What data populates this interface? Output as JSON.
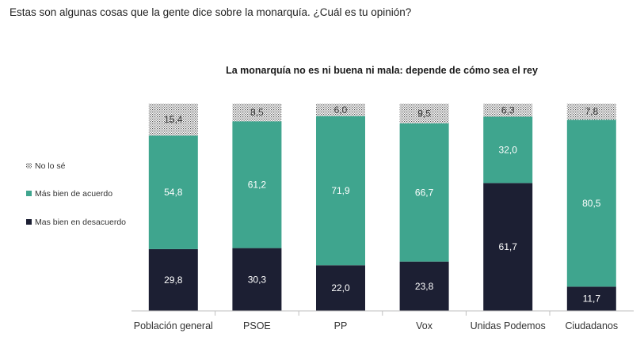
{
  "question": "Estas son algunas cosas que la gente dice sobre la monarquía. ¿Cuál es tu opinión?",
  "chart_data": {
    "type": "bar",
    "stacked": true,
    "title": "La monarquía no es ni buena ni mala: depende de cómo sea el rey",
    "categories": [
      "Población general",
      "PSOE",
      "PP",
      "Vox",
      "Unidas Podemos",
      "Ciudadanos"
    ],
    "series": [
      {
        "name": "Mas bien en desacuerdo",
        "color": "#1c1f33",
        "values": [
          29.8,
          30.3,
          22.0,
          23.8,
          61.7,
          11.7
        ],
        "labels": [
          "29,8",
          "30,3",
          "22,0",
          "23,8",
          "61,7",
          "11,7"
        ]
      },
      {
        "name": "Más bien de acuerdo",
        "color": "#3fa58e",
        "values": [
          54.8,
          61.2,
          71.9,
          66.7,
          32.0,
          80.5
        ],
        "labels": [
          "54,8",
          "61,2",
          "71,9",
          "66,7",
          "32,0",
          "80,5"
        ]
      },
      {
        "name": "No lo sé",
        "color": "#d9d9d9",
        "pattern": "dotted",
        "values": [
          15.4,
          8.5,
          6.0,
          9.5,
          6.3,
          7.8
        ],
        "labels": [
          "15,4",
          "8,5",
          "6,0",
          "9,5",
          "6,3",
          "7,8"
        ]
      }
    ],
    "legend": [
      "No lo sé",
      "Más bien de acuerdo",
      "Mas bien en desacuerdo"
    ],
    "legend_position": "left",
    "ylim": [
      0,
      100
    ],
    "grid": false
  }
}
